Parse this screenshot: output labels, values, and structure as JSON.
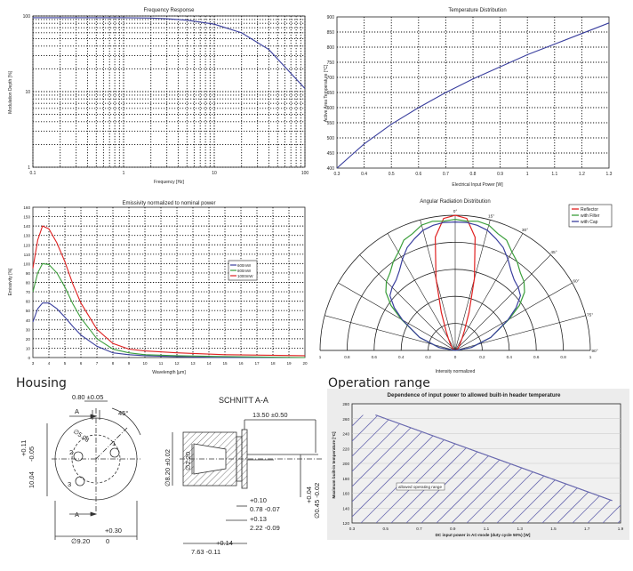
{
  "chart_data": [
    {
      "type": "line",
      "title": "Frequency Response",
      "xlabel": "Frequency [Hz]",
      "ylabel": "Modulation Depth [%]",
      "xscale": "log",
      "yscale": "log",
      "xlim": [
        0.1,
        100
      ],
      "ylim": [
        1,
        100
      ],
      "xticks": [
        "0.1",
        "1",
        "10",
        "100"
      ],
      "yticks": [
        "1",
        "10",
        "100"
      ],
      "grid": true,
      "series": [
        {
          "color": "#3a3f9e",
          "x": [
            0.1,
            0.5,
            1,
            2,
            3,
            5,
            10,
            20,
            40,
            100
          ],
          "y": [
            95,
            95,
            95,
            94,
            92,
            88,
            78,
            60,
            36,
            11
          ]
        }
      ]
    },
    {
      "type": "line",
      "title": "Temperature Distribution",
      "xlabel": "Electrical Input Power [W]",
      "ylabel": "Active Area Temperature [°C]",
      "xlim": [
        0.3,
        1.3
      ],
      "ylim": [
        400,
        900
      ],
      "xticks": [
        "0.3",
        "0.4",
        "0.5",
        "0.6",
        "0.7",
        "0.8",
        "0.9",
        "1",
        "1.1",
        "1.2",
        "1.3"
      ],
      "yticks": [
        "400",
        "450",
        "500",
        "550",
        "600",
        "650",
        "700",
        "750",
        "800",
        "850",
        "900"
      ],
      "grid": true,
      "series": [
        {
          "color": "#3a3f9e",
          "x": [
            0.3,
            0.35,
            0.4,
            0.5,
            0.6,
            0.7,
            0.8,
            0.9,
            1.0,
            1.1,
            1.2,
            1.3
          ],
          "y": [
            400,
            440,
            480,
            545,
            600,
            650,
            695,
            735,
            775,
            810,
            845,
            880
          ]
        }
      ]
    },
    {
      "type": "line",
      "title": "Emissivity normalized to nominal power",
      "xlabel": "Wavelength [µm]",
      "ylabel": "Emissivity [%]",
      "xlim": [
        3,
        20
      ],
      "ylim": [
        0,
        160
      ],
      "xticks": [
        "3",
        "4",
        "5",
        "6",
        "7",
        "8",
        "9",
        "10",
        "11",
        "12",
        "13",
        "14",
        "15",
        "16",
        "17",
        "18",
        "19",
        "20"
      ],
      "yticks": [
        "0",
        "10",
        "20",
        "30",
        "40",
        "50",
        "60",
        "70",
        "80",
        "90",
        "100",
        "110",
        "120",
        "130",
        "140",
        "150",
        "160"
      ],
      "grid": true,
      "legend": "center-right",
      "series": [
        {
          "name": "600mW",
          "color": "#3a3f9e",
          "x": [
            3,
            3.3,
            3.6,
            4,
            4.5,
            5,
            5.5,
            6,
            7,
            8,
            9,
            10,
            12,
            15,
            20
          ],
          "y": [
            38,
            52,
            58,
            58,
            52,
            43,
            33,
            24,
            12,
            5,
            3,
            2,
            1,
            0,
            0
          ]
        },
        {
          "name": "800mW",
          "color": "#3a9e3a",
          "x": [
            3,
            3.3,
            3.6,
            4,
            4.5,
            5,
            5.5,
            6,
            7,
            8,
            9,
            10,
            12,
            15,
            20
          ],
          "y": [
            70,
            90,
            100,
            99,
            90,
            75,
            57,
            42,
            20,
            9,
            5,
            3,
            2,
            1,
            0
          ]
        },
        {
          "name": "1000mW",
          "color": "#e02020",
          "x": [
            3,
            3.3,
            3.6,
            4,
            4.5,
            5,
            5.5,
            6,
            7,
            8,
            9,
            10,
            12,
            15,
            20
          ],
          "y": [
            95,
            125,
            140,
            137,
            122,
            102,
            78,
            58,
            30,
            15,
            9,
            7,
            5,
            3,
            2
          ]
        }
      ]
    },
    {
      "type": "polar",
      "title": "Angular Radiation Distribution",
      "xlabel": "Intensity normalized",
      "angle_labels": [
        "0°",
        "15°",
        "30°",
        "45°",
        "60°",
        "75°",
        "90°"
      ],
      "radial_labels": [
        "1",
        "0.8",
        "0.6",
        "0.4",
        "0.2",
        "0",
        "0.2",
        "0.4",
        "0.6",
        "0.8",
        "1"
      ],
      "legend": "top-right",
      "series": [
        {
          "name": "Reflector",
          "color": "#e02020",
          "angles": [
            0,
            5,
            10,
            15,
            20,
            25,
            30,
            40,
            60,
            90
          ],
          "r": [
            1.0,
            0.98,
            0.85,
            0.55,
            0.3,
            0.16,
            0.1,
            0.05,
            0.02,
            0
          ]
        },
        {
          "name": "with Filter",
          "color": "#3a9e3a",
          "angles": [
            0,
            5,
            10,
            15,
            20,
            25,
            30,
            35,
            40,
            45,
            50,
            55,
            60,
            70,
            80,
            90
          ],
          "r": [
            0.97,
            0.96,
            0.97,
            0.96,
            0.92,
            0.9,
            0.84,
            0.8,
            0.75,
            0.72,
            0.67,
            0.58,
            0.46,
            0.28,
            0.12,
            0
          ]
        },
        {
          "name": "with Cap",
          "color": "#3a3f9e",
          "angles": [
            0,
            5,
            10,
            15,
            20,
            25,
            30,
            35,
            40,
            45,
            50,
            55,
            60,
            70,
            80,
            90
          ],
          "r": [
            0.95,
            0.95,
            0.94,
            0.92,
            0.88,
            0.84,
            0.78,
            0.72,
            0.68,
            0.66,
            0.63,
            0.55,
            0.45,
            0.28,
            0.12,
            0
          ]
        }
      ]
    },
    {
      "type": "area",
      "title": "Dependence of input power to allowed built-in header temperature",
      "xlabel": "DC input power in AC-mode (duty cycle 50%) [W]",
      "ylabel": "Maximum built-in temperature [°C]",
      "xlim": [
        0.3,
        1.9
      ],
      "ylim": [
        120,
        280
      ],
      "xticks": [
        "0.3",
        "0.5",
        "0.7",
        "0.9",
        "1.1",
        "1.3",
        "1.5",
        "1.7",
        "1.9"
      ],
      "yticks": [
        "120",
        "140",
        "160",
        "180",
        "200",
        "220",
        "240",
        "260",
        "280"
      ],
      "annotation": "allowed operating range",
      "series": [
        {
          "color": "#6b6bb0",
          "x": [
            0.44,
            1.85
          ],
          "y": [
            265,
            150
          ]
        }
      ]
    }
  ],
  "sections": {
    "housing": "Housing",
    "operation": "Operation range"
  },
  "drawing": {
    "section_title": "SCHNITT A-A",
    "dims": [
      "0.80 ±0.05",
      "45°",
      "13.50 ±0.50",
      "∅5.08",
      "10.04",
      "-0.05",
      "+0.11",
      "∅8.20 ±0.02",
      "∅2.20",
      "+0.10",
      "0.78 -0.07",
      "+0.13",
      "2.22 -0.09",
      "+0.04",
      "∅0.45 -0.02",
      "+0.30",
      "∅9.20",
      "0",
      "+0.14",
      "7.63 -0.11",
      "A",
      "A",
      "1",
      "2",
      "3"
    ]
  }
}
